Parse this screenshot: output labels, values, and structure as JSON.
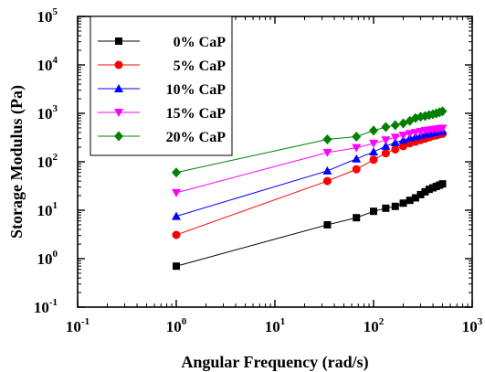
{
  "chart_data": {
    "type": "scatter",
    "xlabel": "Angular Frequency (rad/s)",
    "ylabel": "Storage Modulus (Pa)",
    "xscale": "log",
    "yscale": "log",
    "xlim": [
      0.1,
      1000
    ],
    "ylim": [
      0.1,
      100000
    ],
    "x_ticks": [
      {
        "base": "10",
        "exp": "-1",
        "value": 0.1
      },
      {
        "base": "10",
        "exp": "0",
        "value": 1
      },
      {
        "base": "10",
        "exp": "1",
        "value": 10
      },
      {
        "base": "10",
        "exp": "2",
        "value": 100
      },
      {
        "base": "10",
        "exp": "3",
        "value": 1000
      }
    ],
    "y_ticks": [
      {
        "base": "10",
        "exp": "-1",
        "value": 0.1
      },
      {
        "base": "10",
        "exp": "0",
        "value": 1
      },
      {
        "base": "10",
        "exp": "1",
        "value": 10
      },
      {
        "base": "10",
        "exp": "2",
        "value": 100
      },
      {
        "base": "10",
        "exp": "3",
        "value": 1000
      },
      {
        "base": "10",
        "exp": "4",
        "value": 10000
      },
      {
        "base": "10",
        "exp": "5",
        "value": 100000
      }
    ],
    "legend_position": "top-left",
    "grid": false,
    "series": [
      {
        "name": "0% CaP",
        "color": "#000000",
        "marker": "square",
        "x": [
          1,
          34,
          67,
          100,
          133,
          166,
          200,
          233,
          266,
          300,
          333,
          366,
          400,
          433,
          466,
          500
        ],
        "y": [
          0.7,
          5.0,
          7.0,
          9.5,
          11,
          12,
          14,
          16,
          18,
          21,
          24,
          27,
          29,
          31,
          33,
          35
        ]
      },
      {
        "name": "5% CaP",
        "color": "#ff0000",
        "marker": "circle",
        "x": [
          1,
          34,
          67,
          100,
          133,
          166,
          200,
          233,
          266,
          300,
          333,
          366,
          400,
          433,
          466,
          500
        ],
        "y": [
          3.1,
          40,
          70,
          110,
          150,
          180,
          210,
          240,
          260,
          280,
          300,
          320,
          340,
          350,
          370,
          380
        ]
      },
      {
        "name": "10% CaP",
        "color": "#0000ff",
        "marker": "triangle",
        "x": [
          1,
          34,
          67,
          100,
          133,
          166,
          200,
          233,
          266,
          300,
          333,
          366,
          400,
          433,
          466,
          500
        ],
        "y": [
          7.5,
          65,
          115,
          160,
          210,
          250,
          280,
          310,
          330,
          350,
          370,
          380,
          400,
          410,
          420,
          430
        ]
      },
      {
        "name": "15% CaP",
        "color": "#ff00ff",
        "marker": "triangle-down",
        "x": [
          1,
          34,
          67,
          100,
          133,
          166,
          200,
          233,
          266,
          300,
          333,
          366,
          400,
          433,
          466,
          500
        ],
        "y": [
          23,
          155,
          195,
          240,
          280,
          320,
          350,
          380,
          400,
          420,
          440,
          450,
          460,
          470,
          480,
          490
        ]
      },
      {
        "name": "20% CaP",
        "color": "#008000",
        "marker": "diamond",
        "x": [
          1,
          34,
          67,
          100,
          133,
          166,
          200,
          233,
          266,
          300,
          333,
          366,
          400,
          433,
          466,
          500
        ],
        "y": [
          60,
          290,
          330,
          440,
          520,
          570,
          620,
          700,
          800,
          850,
          880,
          920,
          960,
          1000,
          1050,
          1100
        ]
      }
    ]
  }
}
